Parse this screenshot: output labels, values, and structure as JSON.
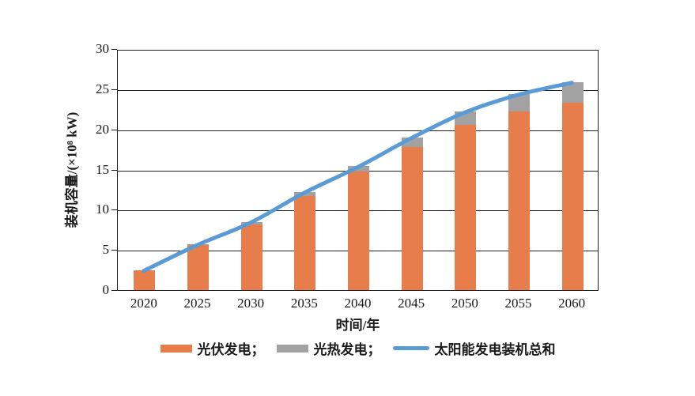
{
  "chart_data": {
    "type": "bar",
    "subtype": "stacked-bars-with-total-line",
    "title": "",
    "categories": [
      "2020",
      "2025",
      "2030",
      "2035",
      "2040",
      "2045",
      "2050",
      "2055",
      "2060"
    ],
    "series": [
      {
        "name": "光伏发电",
        "type": "bar",
        "color": "#E67D4A",
        "values": [
          2.5,
          5.6,
          8.2,
          11.7,
          14.8,
          17.8,
          20.6,
          22.2,
          23.3
        ]
      },
      {
        "name": "光热发电",
        "type": "bar",
        "color": "#A2A2A2",
        "values": [
          0.0,
          0.1,
          0.3,
          0.5,
          0.6,
          1.2,
          1.6,
          2.2,
          2.6
        ]
      },
      {
        "name": "太阳能发电装机总和",
        "type": "line",
        "color": "#5B9BD5",
        "values": [
          2.5,
          5.7,
          8.5,
          12.2,
          15.4,
          19.0,
          22.2,
          24.4,
          25.9
        ]
      }
    ],
    "stacked": true,
    "xlabel": "时间/年",
    "ylabel": "装机容量/(×10⁸ kW)",
    "ylim": [
      0,
      30
    ],
    "yticks": [
      0,
      5,
      10,
      15,
      20,
      25,
      30
    ],
    "grid": "horizontal",
    "legend_position": "bottom",
    "legend": [
      {
        "label": "光伏发电；",
        "swatch": "rect",
        "color": "#E67D4A"
      },
      {
        "label": "光热发电；",
        "swatch": "rect",
        "color": "#A2A2A2"
      },
      {
        "label": "太阳能发电装机总和",
        "swatch": "line",
        "color": "#5B9BD5"
      }
    ]
  }
}
